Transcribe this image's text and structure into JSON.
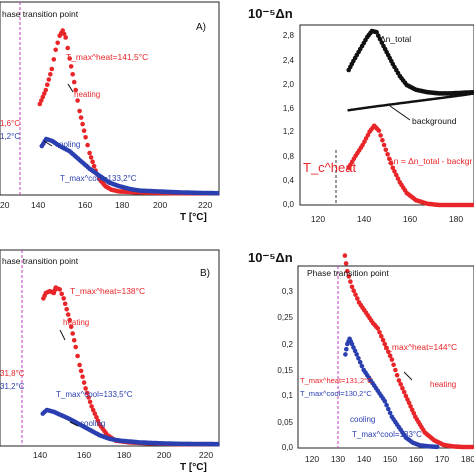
{
  "chart_data": [
    {
      "panel": "top-left",
      "type": "scatter",
      "letter": "A)",
      "subtitle": "hase transition point",
      "xlabel": "T [°C]",
      "xlim": [
        110,
        220
      ],
      "x_ticks": [
        "20",
        "140",
        "160",
        "180",
        "200",
        "220"
      ],
      "colors": {
        "heating": "#e8262a",
        "cooling": "#2a3fb0",
        "marker": "#c040c0"
      },
      "transition_temp": 131.6,
      "annotations": {
        "tmax_heat": "T_max^heat=141,5°C",
        "tmax_cool": "T_max^cool=133,2°C",
        "heating": "heating",
        "cooling": "cooling",
        "left_red": "1,6°C",
        "left_blue": "1,2°C"
      },
      "series": [
        {
          "name": "heating",
          "points": [
            [
              130,
              0.52
            ],
            [
              133,
              0.6
            ],
            [
              136,
              0.72
            ],
            [
              138,
              0.83
            ],
            [
              140,
              0.91
            ],
            [
              141.5,
              0.94
            ],
            [
              143,
              0.9
            ],
            [
              145,
              0.78
            ],
            [
              148,
              0.6
            ],
            [
              150,
              0.48
            ],
            [
              153,
              0.33
            ],
            [
              155,
              0.24
            ],
            [
              158,
              0.14
            ],
            [
              160,
              0.09
            ],
            [
              163,
              0.05
            ],
            [
              166,
              0.03
            ],
            [
              170,
              0.02
            ],
            [
              180,
              0.015
            ],
            [
              190,
              0.012
            ],
            [
              200,
              0.01
            ],
            [
              210,
              0.01
            ],
            [
              220,
              0.01
            ]
          ]
        },
        {
          "name": "cooling",
          "points": [
            [
              131,
              0.28
            ],
            [
              133.2,
              0.32
            ],
            [
              136,
              0.31
            ],
            [
              140,
              0.28
            ],
            [
              145,
              0.25
            ],
            [
              150,
              0.2
            ],
            [
              155,
              0.15
            ],
            [
              160,
              0.11
            ],
            [
              165,
              0.07
            ],
            [
              170,
              0.05
            ],
            [
              175,
              0.035
            ],
            [
              180,
              0.025
            ],
            [
              190,
              0.02
            ],
            [
              200,
              0.015
            ],
            [
              210,
              0.012
            ],
            [
              220,
              0.01
            ]
          ]
        }
      ]
    },
    {
      "panel": "top-right",
      "type": "scatter",
      "ylabel": "10⁻⁵Δn",
      "xlim": [
        110,
        185
      ],
      "ylim": [
        0,
        3.0
      ],
      "x_ticks": [
        "120",
        "140",
        "160",
        "180"
      ],
      "y_ticks": [
        "0,0",
        "0,4",
        "0,8",
        "1,2",
        "1,6",
        "2,0",
        "2,4",
        "2,8"
      ],
      "transition_temp": 130,
      "annotations": {
        "total": "Δn_total",
        "background": "background",
        "formula": "Δn = Δn_total - backgr",
        "tc": "T_c^heat"
      },
      "series": [
        {
          "name": "Δn_total",
          "points": [
            [
              131,
              2.25
            ],
            [
              133,
              2.4
            ],
            [
              136,
              2.6
            ],
            [
              139,
              2.8
            ],
            [
              141,
              2.9
            ],
            [
              143,
              2.88
            ],
            [
              146,
              2.65
            ],
            [
              150,
              2.35
            ],
            [
              153,
              2.15
            ],
            [
              156,
              2.0
            ],
            [
              160,
              1.92
            ],
            [
              165,
              1.88
            ],
            [
              170,
              1.86
            ],
            [
              175,
              1.86
            ],
            [
              180,
              1.87
            ],
            [
              185,
              1.88
            ]
          ]
        },
        {
          "name": "background",
          "points": [
            [
              131,
              1.58
            ],
            [
              140,
              1.63
            ],
            [
              150,
              1.68
            ],
            [
              160,
              1.73
            ],
            [
              170,
              1.78
            ],
            [
              180,
              1.83
            ],
            [
              185,
              1.86
            ]
          ]
        },
        {
          "name": "Δn",
          "points": [
            [
              131,
              0.62
            ],
            [
              134,
              0.82
            ],
            [
              137,
              1.0
            ],
            [
              140,
              1.22
            ],
            [
              142,
              1.32
            ],
            [
              144,
              1.24
            ],
            [
              147,
              0.92
            ],
            [
              150,
              0.62
            ],
            [
              153,
              0.38
            ],
            [
              156,
              0.2
            ],
            [
              160,
              0.08
            ],
            [
              165,
              0.02
            ],
            [
              170,
              0.0
            ],
            [
              180,
              0.0
            ],
            [
              185,
              0.0
            ]
          ]
        }
      ]
    },
    {
      "panel": "bottom-left",
      "type": "scatter",
      "letter": "B)",
      "subtitle": "hase transition point",
      "xlabel": "T [°C]",
      "xlim": [
        110,
        220
      ],
      "x_ticks": [
        "140",
        "160",
        "180",
        "200",
        "220"
      ],
      "transition_temp": 131.8,
      "annotations": {
        "tmax_heat": "T_max^heat=138°C",
        "tmax_cool": "T_max^cool=133,5°C",
        "heating": "heating",
        "cooling": "cooling",
        "left_red": "31,8°C",
        "left_blue": "31,2°C"
      },
      "series": [
        {
          "name": "heating",
          "points": [
            [
              131.8,
              0.82
            ],
            [
              133,
              0.85
            ],
            [
              135,
              0.86
            ],
            [
              137,
              0.85
            ],
            [
              138,
              0.88
            ],
            [
              140,
              0.87
            ],
            [
              142,
              0.82
            ],
            [
              145,
              0.7
            ],
            [
              148,
              0.55
            ],
            [
              150,
              0.45
            ],
            [
              153,
              0.32
            ],
            [
              156,
              0.22
            ],
            [
              160,
              0.12
            ],
            [
              164,
              0.06
            ],
            [
              168,
              0.03
            ],
            [
              175,
              0.02
            ],
            [
              185,
              0.015
            ],
            [
              200,
              0.01
            ],
            [
              220,
              0.01
            ]
          ]
        },
        {
          "name": "cooling",
          "points": [
            [
              131.5,
              0.18
            ],
            [
              133.5,
              0.2
            ],
            [
              137,
              0.19
            ],
            [
              141,
              0.17
            ],
            [
              145,
              0.15
            ],
            [
              150,
              0.12
            ],
            [
              155,
              0.09
            ],
            [
              160,
              0.06
            ],
            [
              165,
              0.04
            ],
            [
              170,
              0.03
            ],
            [
              180,
              0.02
            ],
            [
              190,
              0.015
            ],
            [
              200,
              0.012
            ],
            [
              220,
              0.01
            ]
          ]
        }
      ]
    },
    {
      "panel": "bottom-right",
      "type": "scatter",
      "ylabel": "10⁻⁵Δn",
      "xlim": [
        110,
        185
      ],
      "ylim": [
        0,
        0.35
      ],
      "x_ticks": [
        "120",
        "130",
        "140",
        "150",
        "160",
        "170",
        "180"
      ],
      "y_ticks": [
        "0,0",
        "0,05",
        "0,1",
        "0,15",
        "0,2",
        "0,25",
        "0,3"
      ],
      "transition_temp": 130,
      "annotations": {
        "subtitle": "Phase transition point",
        "tmax_heat": "T_max^heat=144°C",
        "tmax_cool_text": "T_max^cool=133°C",
        "heating": "heating",
        "cooling": "cooling",
        "left_red": "T_max^heat=131,2°C",
        "left_blue": "T_max^cool=130,2°C"
      },
      "series": [
        {
          "name": "heating",
          "points": [
            [
              130,
              0.37
            ],
            [
              131,
              0.34
            ],
            [
              133,
              0.31
            ],
            [
              136,
              0.28
            ],
            [
              139,
              0.26
            ],
            [
              142,
              0.24
            ],
            [
              144,
              0.23
            ],
            [
              147,
              0.2
            ],
            [
              150,
              0.17
            ],
            [
              153,
              0.13
            ],
            [
              156,
              0.1
            ],
            [
              160,
              0.06
            ],
            [
              164,
              0.03
            ],
            [
              168,
              0.015
            ],
            [
              172,
              0.006
            ],
            [
              176,
              0.003
            ],
            [
              180,
              0.002
            ],
            [
              185,
              0.002
            ]
          ]
        },
        {
          "name": "cooling",
          "points": [
            [
              130.2,
              0.18
            ],
            [
              131,
              0.2
            ],
            [
              132,
              0.21
            ],
            [
              133,
              0.2
            ],
            [
              135,
              0.18
            ],
            [
              138,
              0.15
            ],
            [
              141,
              0.13
            ],
            [
              144,
              0.11
            ],
            [
              147,
              0.09
            ],
            [
              150,
              0.06
            ],
            [
              153,
              0.04
            ],
            [
              156,
              0.02
            ],
            [
              159,
              0.01
            ],
            [
              162,
              0.005
            ],
            [
              166,
              0.003
            ],
            [
              170,
              0.002
            ]
          ]
        }
      ]
    }
  ]
}
